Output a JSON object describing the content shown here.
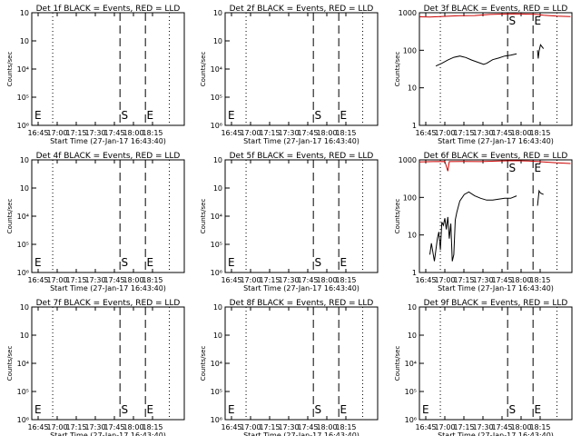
{
  "chart_data": {
    "type": "line",
    "xlabel": "Start Time (27-Jan-17 16:43:40)",
    "xticks": [
      "16:45",
      "17:00",
      "17:15",
      "17:30",
      "17:45",
      "18:00",
      "18:15"
    ],
    "x_range_min": [
      3,
      105
    ],
    "ylabel": "Counts/sec",
    "colors": {
      "events": "#000000",
      "lld": "#cc0000"
    },
    "panels": [
      {
        "title": "Det 1f BLACK = Events, RED = LLD",
        "yscale": "log",
        "ylim": [
          1e-06,
          0.01
        ],
        "yticks": [
          "10⁶",
          "10⁵",
          "10⁴",
          "10⁳",
          "10⁲"
        ],
        "dotted_x": [
          17,
          95
        ],
        "dashed_x": [
          62,
          79
        ],
        "markers": [
          {
            "text": "E",
            "x": 3
          },
          {
            "text": "S",
            "x": 61
          },
          {
            "text": "E",
            "x": 78
          }
        ],
        "events": [],
        "lld": []
      },
      {
        "title": "Det 2f BLACK = Events, RED = LLD",
        "yscale": "log",
        "ylim": [
          1e-06,
          0.01
        ],
        "yticks": [
          "10⁶",
          "10⁵",
          "10⁴",
          "10⁳",
          "10⁲"
        ],
        "dotted_x": [
          17,
          95
        ],
        "dashed_x": [
          62,
          79
        ],
        "markers": [
          {
            "text": "E",
            "x": 3
          },
          {
            "text": "S",
            "x": 61
          },
          {
            "text": "E",
            "x": 78
          }
        ],
        "events": [],
        "lld": []
      },
      {
        "title": "Det 3f BLACK = Events, RED = LLD",
        "yscale": "log",
        "ylim": [
          1,
          1000
        ],
        "yticks": [
          "1",
          "10",
          "100",
          "1000"
        ],
        "dotted_x": [
          17,
          95
        ],
        "dashed_x": [
          62,
          79
        ],
        "markers": [
          {
            "text": "S",
            "x": 61
          },
          {
            "text": "E",
            "x": 78
          }
        ],
        "events": [
          [
            14,
            38
          ],
          [
            18,
            45
          ],
          [
            22,
            55
          ],
          [
            26,
            65
          ],
          [
            30,
            70
          ],
          [
            34,
            64
          ],
          [
            38,
            55
          ],
          [
            42,
            48
          ],
          [
            46,
            42
          ],
          [
            48,
            45
          ],
          [
            52,
            56
          ],
          [
            56,
            62
          ],
          [
            60,
            70
          ],
          [
            64,
            74
          ],
          [
            68,
            80
          ]
        ],
        "events2": [
          [
            82,
            100
          ],
          [
            82.5,
            60
          ],
          [
            83,
            95
          ],
          [
            84,
            140
          ],
          [
            86,
            110
          ]
        ],
        "lld": [
          [
            3,
            780
          ],
          [
            10,
            770
          ],
          [
            20,
            800
          ],
          [
            30,
            830
          ],
          [
            40,
            840
          ],
          [
            50,
            900
          ],
          [
            58,
            920
          ],
          [
            66,
            930
          ],
          [
            74,
            920
          ],
          [
            80,
            910
          ],
          [
            86,
            860
          ],
          [
            95,
            810
          ],
          [
            104,
            790
          ]
        ]
      },
      {
        "title": "Det 4f BLACK = Events, RED = LLD",
        "yscale": "log",
        "ylim": [
          1e-06,
          0.01
        ],
        "yticks": [
          "10⁶",
          "10⁵",
          "10⁴",
          "10⁳",
          "10⁲"
        ],
        "dotted_x": [
          17,
          95
        ],
        "dashed_x": [
          62,
          79
        ],
        "markers": [
          {
            "text": "E",
            "x": 3
          },
          {
            "text": "S",
            "x": 61
          },
          {
            "text": "E",
            "x": 78
          }
        ],
        "events": [],
        "lld": []
      },
      {
        "title": "Det 5f BLACK = Events, RED = LLD",
        "yscale": "log",
        "ylim": [
          1e-06,
          0.01
        ],
        "yticks": [
          "10⁶",
          "10⁵",
          "10⁴",
          "10⁳",
          "10⁲"
        ],
        "dotted_x": [
          17,
          95
        ],
        "dashed_x": [
          62,
          79
        ],
        "markers": [
          {
            "text": "E",
            "x": 3
          },
          {
            "text": "S",
            "x": 61
          },
          {
            "text": "E",
            "x": 78
          }
        ],
        "events": [],
        "lld": []
      },
      {
        "title": "Det 6f BLACK = Events, RED = LLD",
        "yscale": "log",
        "ylim": [
          1,
          1000
        ],
        "yticks": [
          "1",
          "10",
          "100",
          "1000"
        ],
        "dotted_x": [
          17,
          95
        ],
        "dashed_x": [
          62,
          79
        ],
        "markers": [
          {
            "text": "S",
            "x": 61
          },
          {
            "text": "E",
            "x": 78
          }
        ],
        "events": [
          [
            10,
            3
          ],
          [
            11,
            6
          ],
          [
            13,
            2
          ],
          [
            15,
            8
          ],
          [
            16,
            12
          ],
          [
            17,
            4
          ],
          [
            18,
            22
          ],
          [
            19,
            18
          ],
          [
            20,
            28
          ],
          [
            21,
            14
          ],
          [
            22,
            30
          ],
          [
            23,
            8
          ],
          [
            24,
            20
          ],
          [
            25,
            2
          ],
          [
            26,
            3
          ],
          [
            27,
            25
          ],
          [
            28,
            40
          ],
          [
            30,
            80
          ],
          [
            33,
            120
          ],
          [
            36,
            140
          ],
          [
            40,
            110
          ],
          [
            44,
            95
          ],
          [
            48,
            85
          ],
          [
            52,
            85
          ],
          [
            56,
            90
          ],
          [
            60,
            95
          ],
          [
            64,
            95
          ],
          [
            68,
            110
          ]
        ],
        "events2": [
          [
            82,
            60
          ],
          [
            83,
            150
          ],
          [
            84,
            130
          ],
          [
            86,
            120
          ]
        ],
        "lld": [
          [
            3,
            880
          ],
          [
            12,
            900
          ],
          [
            20,
            910
          ],
          [
            22,
            500
          ],
          [
            23,
            900
          ],
          [
            32,
            910
          ],
          [
            44,
            900
          ],
          [
            56,
            930
          ],
          [
            66,
            950
          ],
          [
            76,
            930
          ],
          [
            86,
            880
          ],
          [
            95,
            830
          ],
          [
            104,
            800
          ]
        ]
      },
      {
        "title": "Det 7f BLACK = Events, RED = LLD",
        "yscale": "log",
        "ylim": [
          1e-06,
          0.01
        ],
        "yticks": [
          "10⁶",
          "10⁵",
          "10⁴",
          "10⁳",
          "10⁲"
        ],
        "dotted_x": [
          17,
          95
        ],
        "dashed_x": [
          62,
          79
        ],
        "markers": [
          {
            "text": "E",
            "x": 3
          },
          {
            "text": "S",
            "x": 61
          },
          {
            "text": "E",
            "x": 78
          }
        ],
        "events": [],
        "lld": []
      },
      {
        "title": "Det 8f BLACK = Events, RED = LLD",
        "yscale": "log",
        "ylim": [
          1e-06,
          0.01
        ],
        "yticks": [
          "10⁶",
          "10⁵",
          "10⁴",
          "10⁳",
          "10⁲"
        ],
        "dotted_x": [
          17,
          95
        ],
        "dashed_x": [
          62,
          79
        ],
        "markers": [
          {
            "text": "E",
            "x": 3
          },
          {
            "text": "S",
            "x": 61
          },
          {
            "text": "E",
            "x": 78
          }
        ],
        "events": [],
        "lld": []
      },
      {
        "title": "Det 9f BLACK = Events, RED = LLD",
        "yscale": "log",
        "ylim": [
          1e-06,
          0.01
        ],
        "yticks": [
          "10⁶",
          "10⁵",
          "10⁴",
          "10⁳",
          "10⁲"
        ],
        "dotted_x": [
          17,
          95
        ],
        "dashed_x": [
          62,
          79
        ],
        "markers": [
          {
            "text": "E",
            "x": 3
          },
          {
            "text": "S",
            "x": 61
          },
          {
            "text": "E",
            "x": 78
          }
        ],
        "events": [],
        "lld": []
      }
    ]
  }
}
